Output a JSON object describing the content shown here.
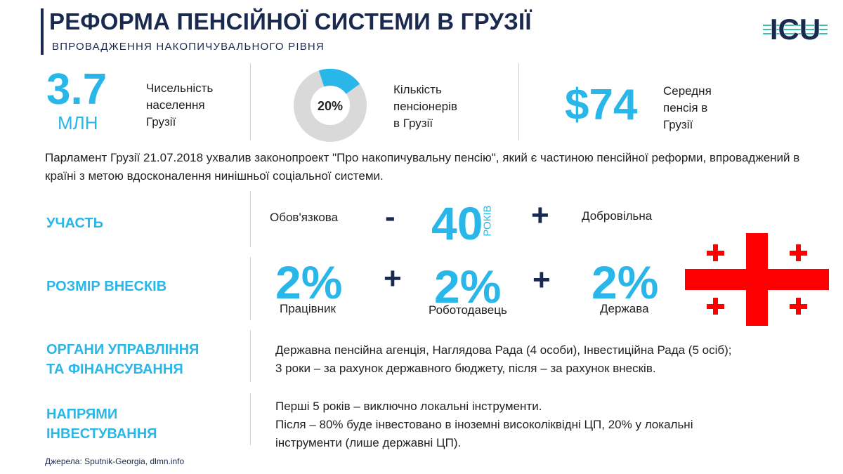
{
  "header": {
    "title": "РЕФОРМА ПЕНСІЙНОЇ СИСТЕМИ В ГРУЗІЇ",
    "subtitle": "ВПРОВАДЖЕННЯ НАКОПИЧУВАЛЬНОГО РІВНЯ",
    "logo_text": "ICU"
  },
  "stats": [
    {
      "value": "3.7",
      "unit": "МЛН",
      "label": [
        "Чисельність",
        "населення",
        "Грузії"
      ]
    },
    {
      "value": "20%",
      "fraction": 0.2,
      "label": [
        "Кількість",
        "пенсіонерів",
        "в Грузії"
      ]
    },
    {
      "value": "$74",
      "label": [
        "Середня",
        "пенсія в",
        "Грузії"
      ]
    }
  ],
  "intro": "Парламент Грузії 21.07.2018 ухвалив законопроект \"Про накопичувальну пенсію\", який є частиною пенсійної реформи, впроваджений в країні з метою вдосконалення нинішньої соціальної системи.",
  "participation": {
    "label": "УЧАСТЬ",
    "left": "Обов'язкова",
    "minus": "-",
    "age": "40",
    "age_unit": "РОКІВ",
    "plus": "+",
    "right": "Добровільна"
  },
  "contributions": {
    "label": "РОЗМІР ВНЕСКІВ",
    "items": [
      {
        "pct": "2%",
        "who": "Працівник"
      },
      {
        "pct": "2%",
        "who": "Роботодавець"
      },
      {
        "pct": "2%",
        "who": "Держава"
      }
    ],
    "plus": "+"
  },
  "governance": {
    "label": [
      "ОРГАНИ УПРАВЛІННЯ",
      "ТА ФІНАНСУВАННЯ"
    ],
    "lines": [
      "Державна пенсійна агенція, Наглядова Рада (4 особи), Інвестиційна Рада (5 осіб);",
      "3 роки – за рахунок державного бюджету, після – за рахунок внесків."
    ]
  },
  "investment": {
    "label": [
      "НАПРЯМИ",
      "ІНВЕСТУВАННЯ"
    ],
    "lines": [
      "Перші 5 років – виключно локальні інструменти.",
      "Після – 80% буде інвестовано в іноземні високоліквідні ЦП, 20% у локальні",
      "інструменти (лише державні ЦП)."
    ]
  },
  "source": "Джерела: Sputnik-Georgia, dlmn.info",
  "colors": {
    "accent": "#29b6e8",
    "navy": "#1a2a4f",
    "flag_red": "#ff0000",
    "donut_grey": "#d9d9d9"
  }
}
